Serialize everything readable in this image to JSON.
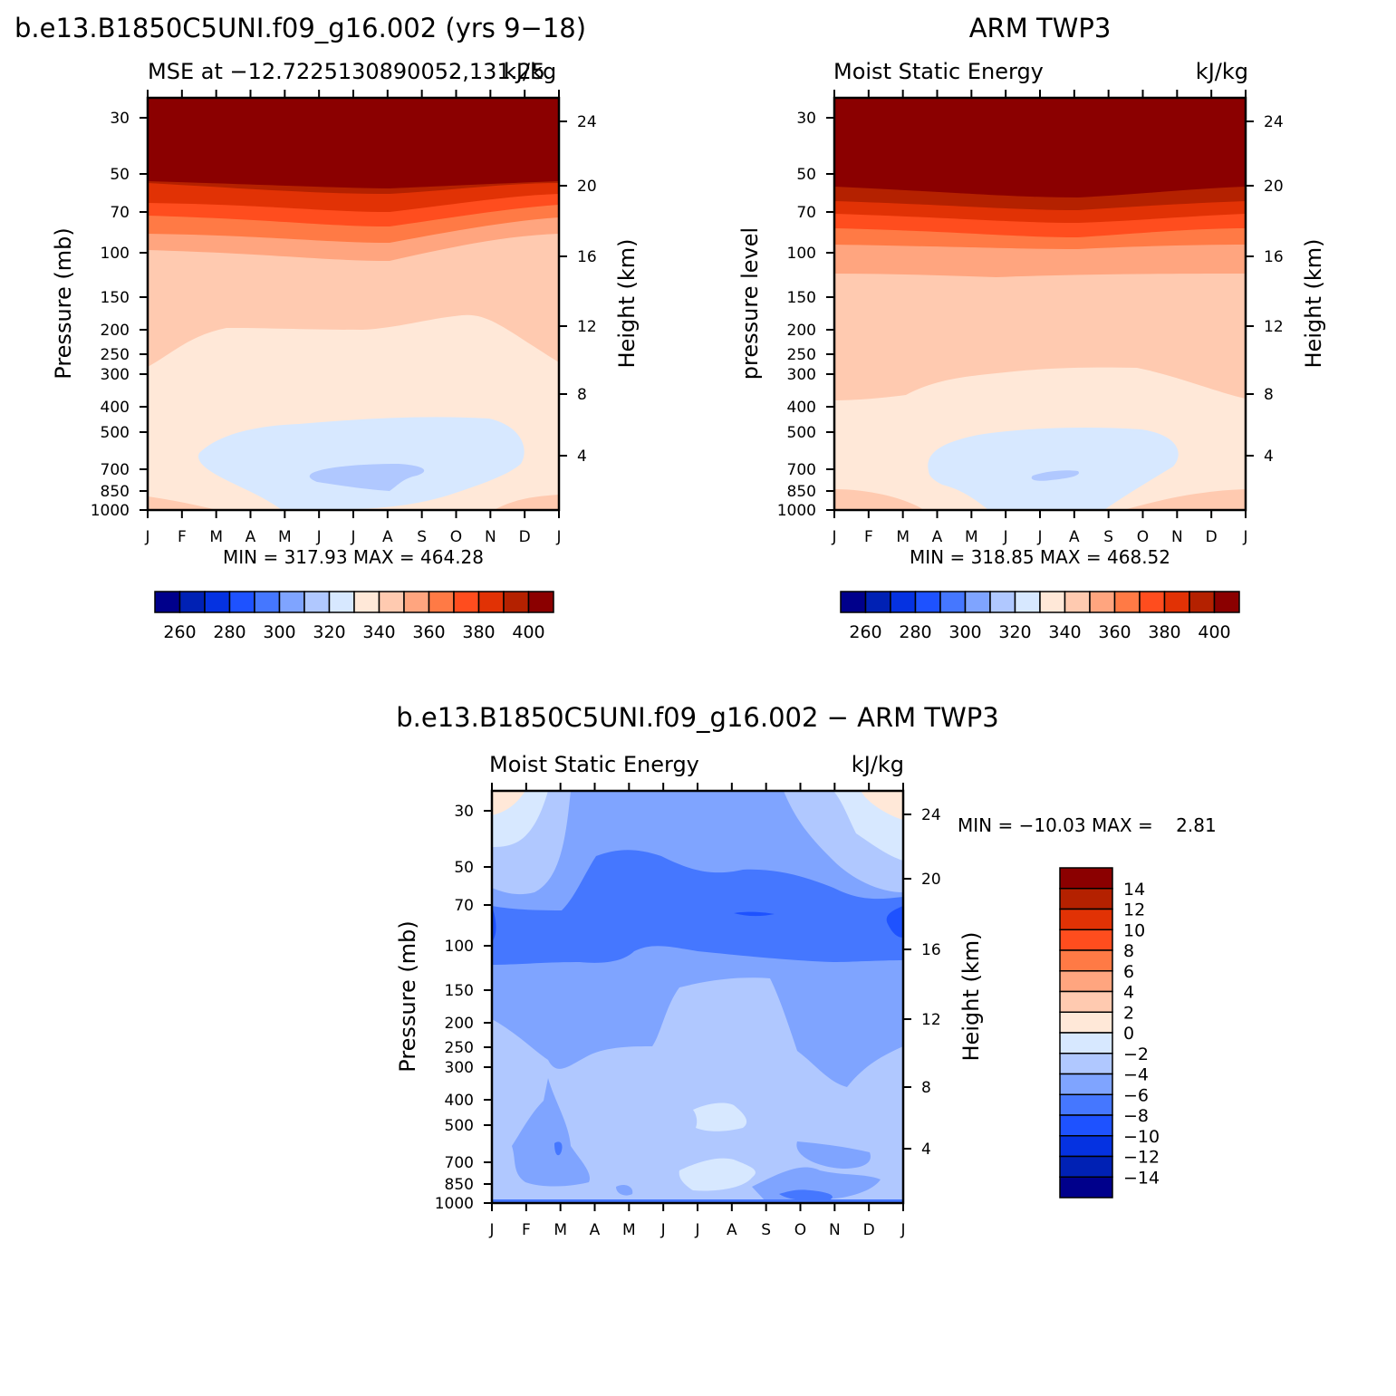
{
  "panels": {
    "model": {
      "title": "b.e13.B1850C5UNI.f09_g16.002 (yrs 9−18)",
      "left_string": "MSE at −12.7225130890052,131.25",
      "right_string": "kJ/kg",
      "ylabel": "Pressure (mb)",
      "ylabel_right": "Height (km)",
      "stats": "MIN = 317.93 MAX = 464.28"
    },
    "obs": {
      "title": "ARM TWP3",
      "left_string": "Moist Static Energy",
      "right_string": "kJ/kg",
      "ylabel": "pressure level",
      "ylabel_right": "Height (km)",
      "stats": "MIN = 318.85 MAX = 468.52"
    },
    "diff": {
      "title": "b.e13.B1850C5UNI.f09_g16.002 − ARM TWP3",
      "left_string": "Moist Static Energy",
      "right_string": "kJ/kg",
      "ylabel": "Pressure (mb)",
      "ylabel_right": "Height (km)",
      "stats": "MIN = −10.03 MAX =    2.81"
    }
  },
  "chart_data": [
    {
      "type": "heatmap",
      "panel": "model",
      "title": "b.e13.B1850C5UNI.f09_g16.002 (yrs 9−18)",
      "ylabel": "Pressure (mb)",
      "y2label": "Height (km)",
      "x_ticks": [
        "J",
        "F",
        "M",
        "A",
        "M",
        "J",
        "J",
        "A",
        "S",
        "O",
        "N",
        "D",
        "J"
      ],
      "pressure_ticks": [
        "30",
        "50",
        "70",
        "100",
        "150",
        "200",
        "250",
        "300",
        "400",
        "500",
        "700",
        "850",
        "1000"
      ],
      "height_ticks": [
        "24",
        "20",
        "16",
        "12",
        "8",
        "4"
      ],
      "contour_levels": [
        260,
        270,
        280,
        290,
        300,
        310,
        320,
        330,
        340,
        350,
        360,
        370,
        380,
        390,
        400
      ],
      "approx_values_by_region": {
        "above_60mb": ">400",
        "60_to_100mb": "350-400",
        "100_to_250mb": "330-340",
        "250_to_500mb": "320-330",
        "boundary_layer_700mb": "310-320"
      },
      "min": 317.93,
      "max": 464.28
    },
    {
      "type": "heatmap",
      "panel": "obs",
      "title": "ARM TWP3",
      "ylabel": "pressure level",
      "y2label": "Height (km)",
      "x_ticks": [
        "J",
        "F",
        "M",
        "A",
        "M",
        "J",
        "J",
        "A",
        "S",
        "O",
        "N",
        "D",
        "J"
      ],
      "pressure_ticks": [
        "30",
        "50",
        "70",
        "100",
        "150",
        "200",
        "250",
        "300",
        "400",
        "500",
        "700",
        "850",
        "1000"
      ],
      "height_ticks": [
        "24",
        "20",
        "16",
        "12",
        "8",
        "4"
      ],
      "contour_levels": [
        260,
        270,
        280,
        290,
        300,
        310,
        320,
        330,
        340,
        350,
        360,
        370,
        380,
        390,
        400
      ],
      "min": 318.85,
      "max": 468.52
    },
    {
      "type": "heatmap",
      "panel": "diff",
      "title": "b.e13.B1850C5UNI.f09_g16.002 − ARM TWP3",
      "ylabel": "Pressure (mb)",
      "y2label": "Height (km)",
      "x_ticks": [
        "J",
        "F",
        "M",
        "A",
        "M",
        "J",
        "J",
        "A",
        "S",
        "O",
        "N",
        "D",
        "J"
      ],
      "pressure_ticks": [
        "30",
        "50",
        "70",
        "100",
        "150",
        "200",
        "250",
        "300",
        "400",
        "500",
        "700",
        "850",
        "1000"
      ],
      "height_ticks": [
        "24",
        "20",
        "16",
        "12",
        "8",
        "4"
      ],
      "contour_levels": [
        -14,
        -12,
        -10,
        -8,
        -6,
        -4,
        -2,
        0,
        2,
        4,
        6,
        8,
        10,
        12,
        14
      ],
      "min": -10.03,
      "max": 2.81
    }
  ],
  "colorbars": {
    "abs": {
      "labels": [
        "260",
        "280",
        "300",
        "320",
        "340",
        "360",
        "380",
        "400"
      ],
      "colors": [
        "#00008b",
        "#0021b4",
        "#0532e1",
        "#1e52ff",
        "#4577ff",
        "#7fa4ff",
        "#b0c8ff",
        "#d7e8ff",
        "#ffe8d8",
        "#ffcab0",
        "#ffa57f",
        "#ff7a45",
        "#ff4d1e",
        "#e13205",
        "#b42100",
        "#8b0000"
      ]
    },
    "diff": {
      "labels": [
        "14",
        "12",
        "10",
        "8",
        "6",
        "4",
        "2",
        "0",
        "−2",
        "−4",
        "−6",
        "−8",
        "−10",
        "−12",
        "−14"
      ],
      "colors": [
        "#8b0000",
        "#b42100",
        "#e13205",
        "#ff4d1e",
        "#ff7a45",
        "#ffa57f",
        "#ffcab0",
        "#ffe8d8",
        "#d7e8ff",
        "#b0c8ff",
        "#7fa4ff",
        "#4577ff",
        "#1e52ff",
        "#0532e1",
        "#0021b4",
        "#00008b"
      ]
    }
  }
}
